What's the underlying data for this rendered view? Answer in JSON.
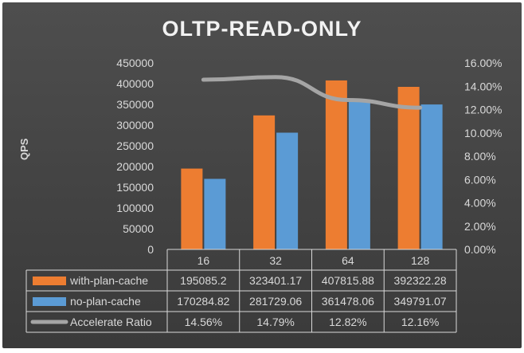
{
  "chart_data": {
    "type": "bar",
    "title": "OLTP-READ-ONLY",
    "ylabel": "QPS",
    "categories": [
      "16",
      "32",
      "64",
      "128"
    ],
    "series": [
      {
        "name": "with-plan-cache",
        "kind": "bar",
        "axis": "left",
        "color": "#ed7d31",
        "values": [
          195085.2,
          323401.17,
          407815.88,
          392322.28
        ],
        "labels": [
          "195085.2",
          "323401.17",
          "407815.88",
          "392322.28"
        ]
      },
      {
        "name": "no-plan-cache",
        "kind": "bar",
        "axis": "left",
        "color": "#5b9bd5",
        "values": [
          170284.82,
          281729.06,
          361478.06,
          349791.07
        ],
        "labels": [
          "170284.82",
          "281729.06",
          "361478.06",
          "349791.07"
        ]
      },
      {
        "name": "Accelerate Ratio",
        "kind": "line",
        "axis": "right",
        "color": "#a5a5a5",
        "values": [
          14.56,
          14.79,
          12.82,
          12.16
        ],
        "labels": [
          "14.56%",
          "14.79%",
          "12.82%",
          "12.16%"
        ]
      }
    ],
    "y_left": {
      "min": 0,
      "max": 450000,
      "step": 50000,
      "ticks": [
        "0",
        "50000",
        "100000",
        "150000",
        "200000",
        "250000",
        "300000",
        "350000",
        "400000",
        "450000"
      ]
    },
    "y_right": {
      "min": 0,
      "max": 16,
      "step": 2,
      "ticks": [
        "0.00%",
        "2.00%",
        "4.00%",
        "6.00%",
        "8.00%",
        "10.00%",
        "12.00%",
        "14.00%",
        "16.00%"
      ]
    },
    "data_table": true,
    "grid": false,
    "colors": {
      "background": "#404040",
      "text": "#d9d9d9",
      "table_border": "#d9d9d9"
    }
  }
}
